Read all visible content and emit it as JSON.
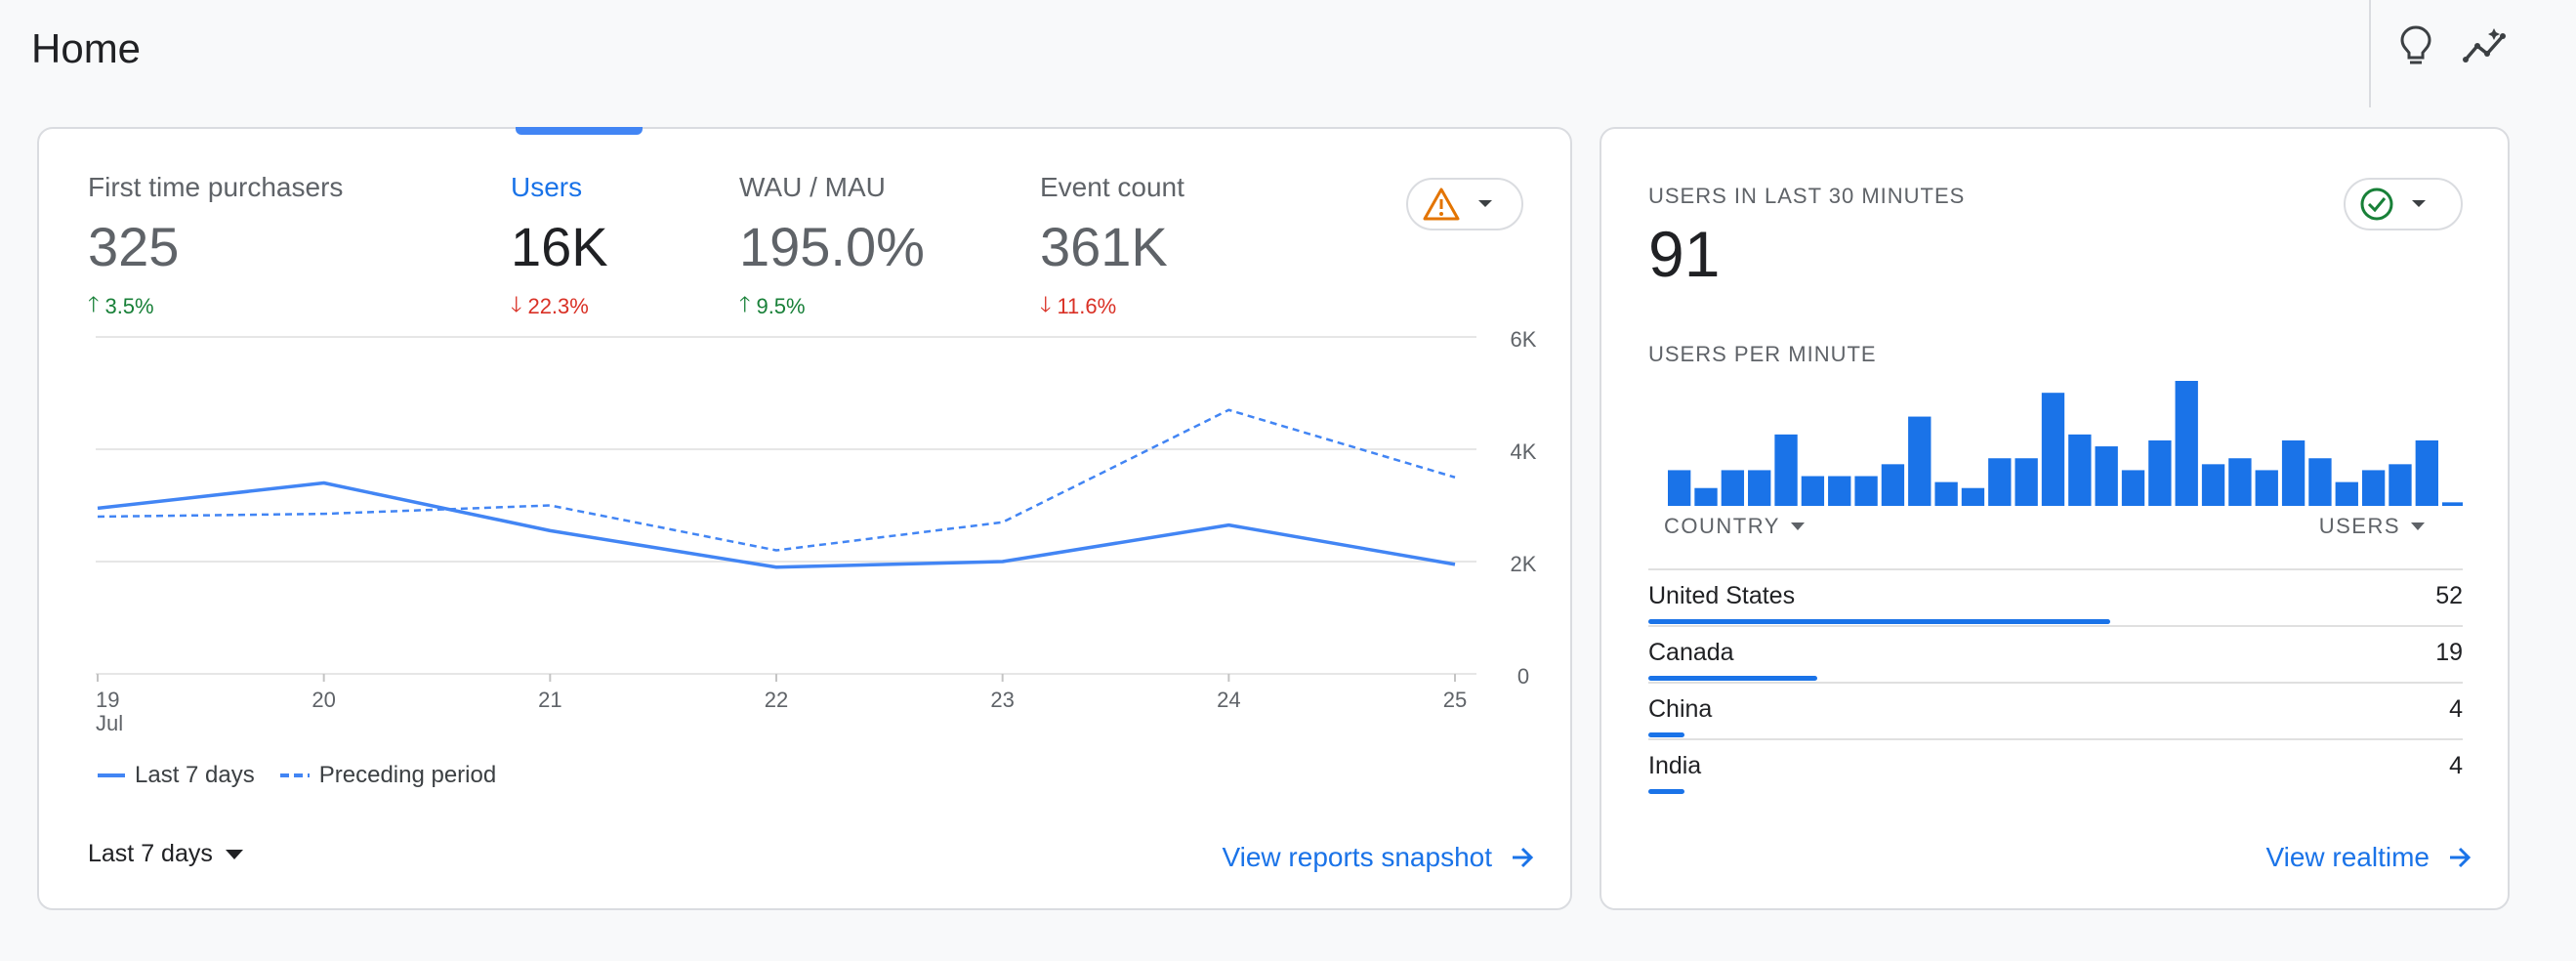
{
  "header": {
    "title": "Home",
    "icons": [
      "lightbulb-icon",
      "insights-icon"
    ]
  },
  "overview": {
    "metrics": [
      {
        "label": "First time purchasers",
        "value": "325",
        "delta": "3.5%",
        "direction": "up",
        "active": false
      },
      {
        "label": "Users",
        "value": "16K",
        "delta": "22.3%",
        "direction": "down",
        "active": true
      },
      {
        "label": "WAU / MAU",
        "value": "195.0%",
        "delta": "9.5%",
        "direction": "up",
        "active": false
      },
      {
        "label": "Event count",
        "value": "361K",
        "delta": "11.6%",
        "direction": "down",
        "active": false
      }
    ],
    "status_icon": "warning-icon",
    "status_color": "#e37400",
    "period_selector": "Last 7 days",
    "link": "View reports snapshot"
  },
  "chart_data": {
    "type": "line",
    "x": [
      "19",
      "20",
      "21",
      "22",
      "23",
      "24",
      "25"
    ],
    "x_sublabel": "Jul",
    "y_ticks": [
      "0",
      "2K",
      "4K",
      "6K"
    ],
    "ylim": [
      0,
      6000
    ],
    "series": [
      {
        "name": "Last 7 days",
        "style": "solid",
        "color": "#4285f4",
        "values": [
          2950,
          3400,
          2550,
          1900,
          2000,
          2650,
          1950
        ]
      },
      {
        "name": "Preceding period",
        "style": "dashed",
        "color": "#4285f4",
        "values": [
          2800,
          2850,
          3000,
          2200,
          2700,
          4700,
          3500
        ]
      }
    ]
  },
  "realtime": {
    "title": "USERS IN LAST 30 MINUTES",
    "value": "91",
    "per_minute_label": "USERS PER MINUTE",
    "per_minute_values": [
      3,
      1.5,
      3,
      3,
      6,
      2.5,
      2.5,
      2.5,
      3.5,
      7.5,
      2,
      1.5,
      4,
      4,
      9.5,
      6,
      5,
      3,
      5.5,
      10.5,
      3.5,
      4,
      3,
      5.5,
      4,
      2,
      3,
      3.5,
      5.5,
      0.3
    ],
    "status_icon": "check-circle-icon",
    "status_color": "#188038",
    "columns": {
      "country": "COUNTRY",
      "users": "USERS"
    },
    "rows": [
      {
        "country": "United States",
        "users": "52",
        "share": 0.567
      },
      {
        "country": "Canada",
        "users": "19",
        "share": 0.207
      },
      {
        "country": "China",
        "users": "4",
        "share": 0.044
      },
      {
        "country": "India",
        "users": "4",
        "share": 0.044
      }
    ],
    "link": "View realtime"
  }
}
